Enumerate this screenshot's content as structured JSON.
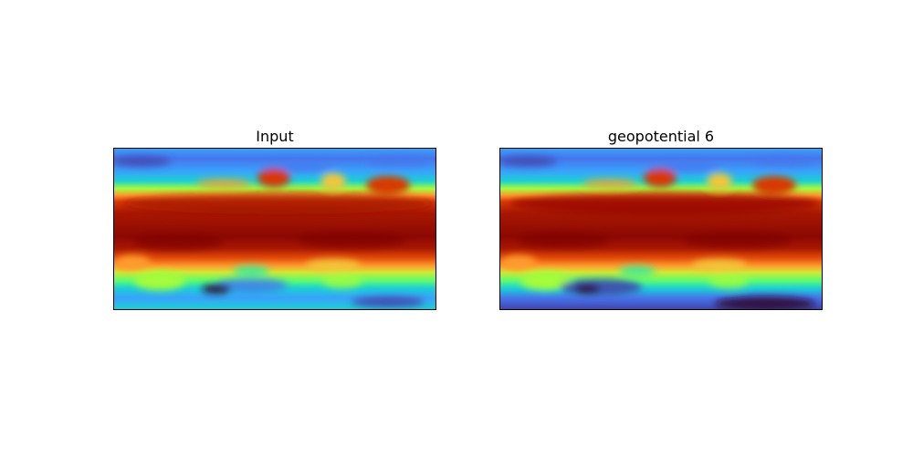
{
  "panels": [
    {
      "title": "Input",
      "field": "input"
    },
    {
      "title": "geopotential 6",
      "field": "prediction"
    }
  ],
  "colormap": {
    "name": "turbo",
    "stops": [
      "#30123b",
      "#4145ab",
      "#4675ed",
      "#39a2fc",
      "#1bcfd4",
      "#24eca6",
      "#61fc6c",
      "#a4fc3b",
      "#d1e834",
      "#f3c63a",
      "#fe9b2d",
      "#f36315",
      "#d93806",
      "#b11901",
      "#7a0403"
    ]
  }
}
